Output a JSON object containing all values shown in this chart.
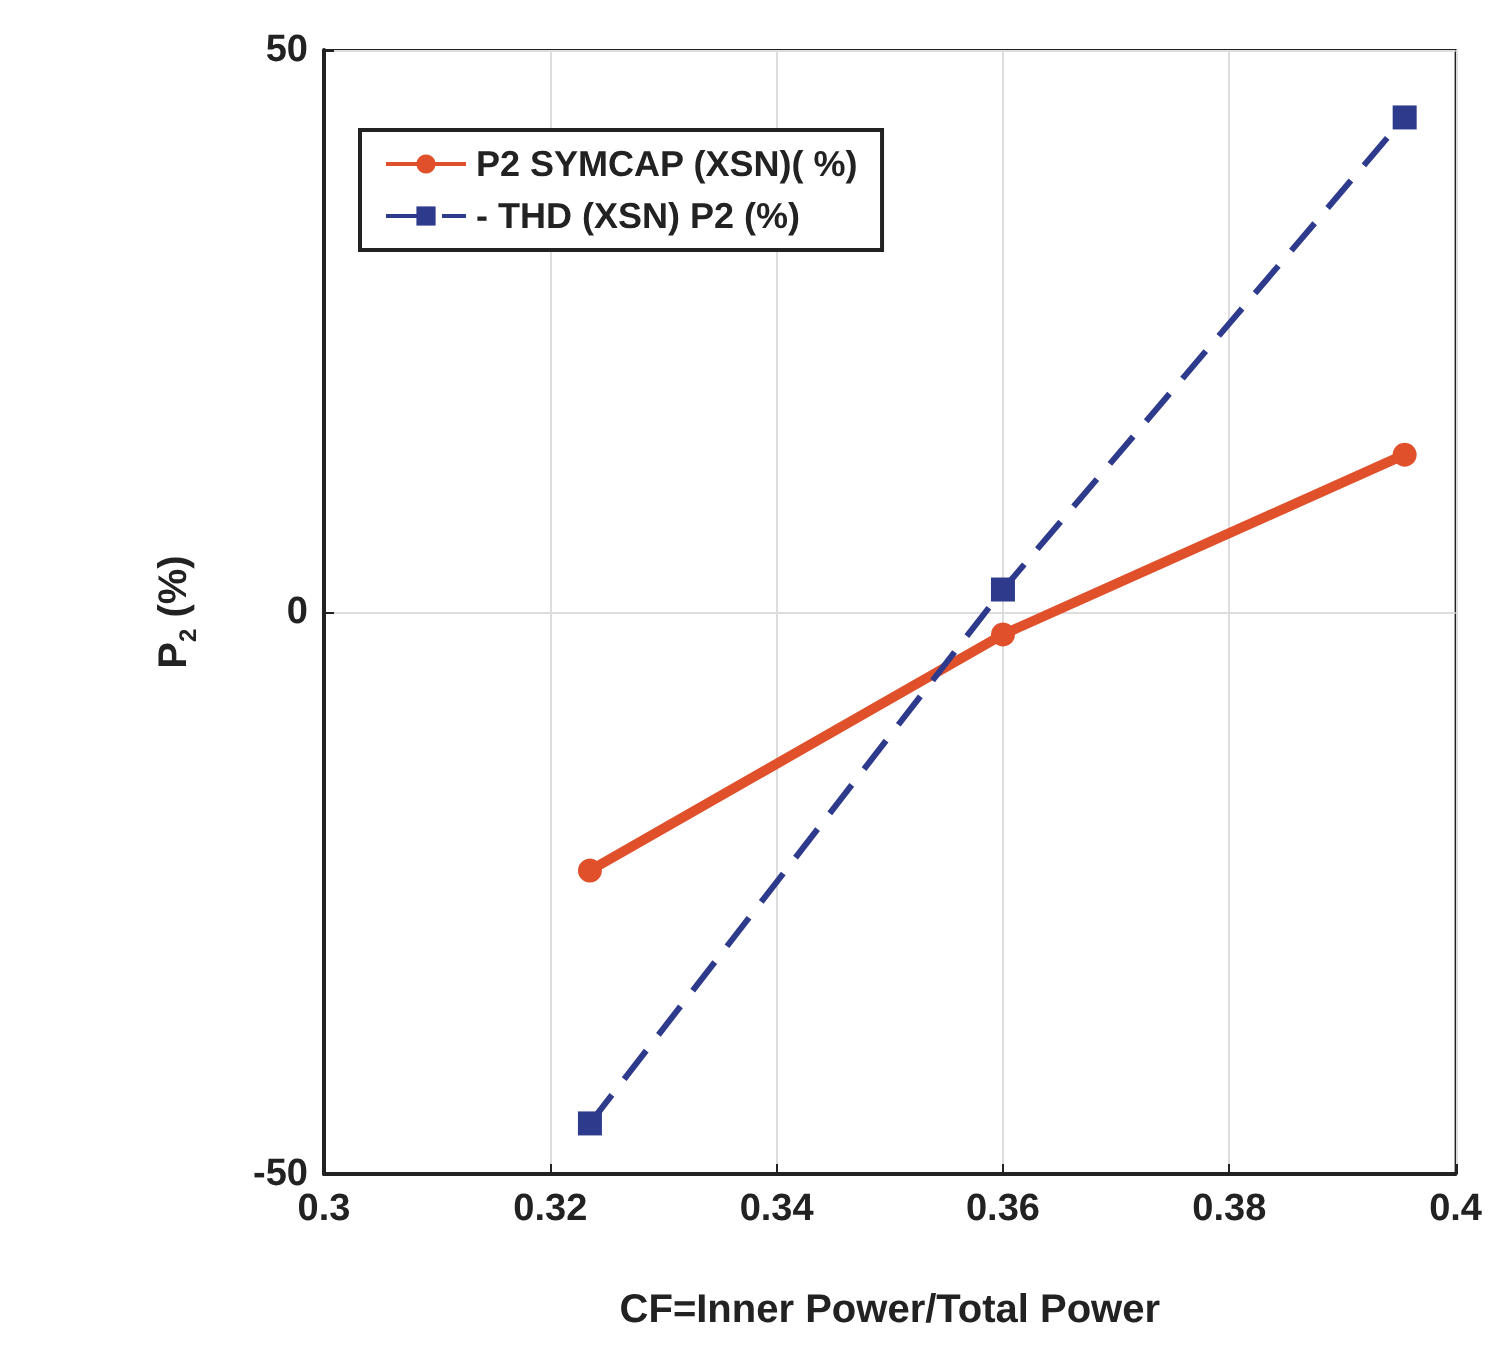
{
  "chart_data": {
    "type": "line",
    "xlabel": "CF=Inner Power/Total Power",
    "ylabel": "P$_{2}$ (%)",
    "xlim": [
      0.3,
      0.4
    ],
    "xticks": [
      "0.3",
      0.32,
      0.34,
      0.36,
      0.38,
      "0.4"
    ],
    "ylim": [
      -50,
      50
    ],
    "yticks": [
      -50,
      0,
      50
    ],
    "grid": true,
    "legend": "top left",
    "series": [
      {
        "name": "P2 SYMCAP (XSN)( %)",
        "color": "#e0502a",
        "x": [
          0.3235,
          0.36,
          0.3955
        ],
        "values": [
          -23,
          -2,
          14
        ],
        "marker": "circle",
        "line_style": "solid"
      },
      {
        "name": "- THD (XSN) P2 (%)",
        "color": "#2e3a8c",
        "x": [
          0.3235,
          0.36,
          0.3955
        ],
        "values": [
          -45.5,
          2,
          44
        ],
        "marker": "square",
        "line_style": "dashed"
      }
    ]
  }
}
